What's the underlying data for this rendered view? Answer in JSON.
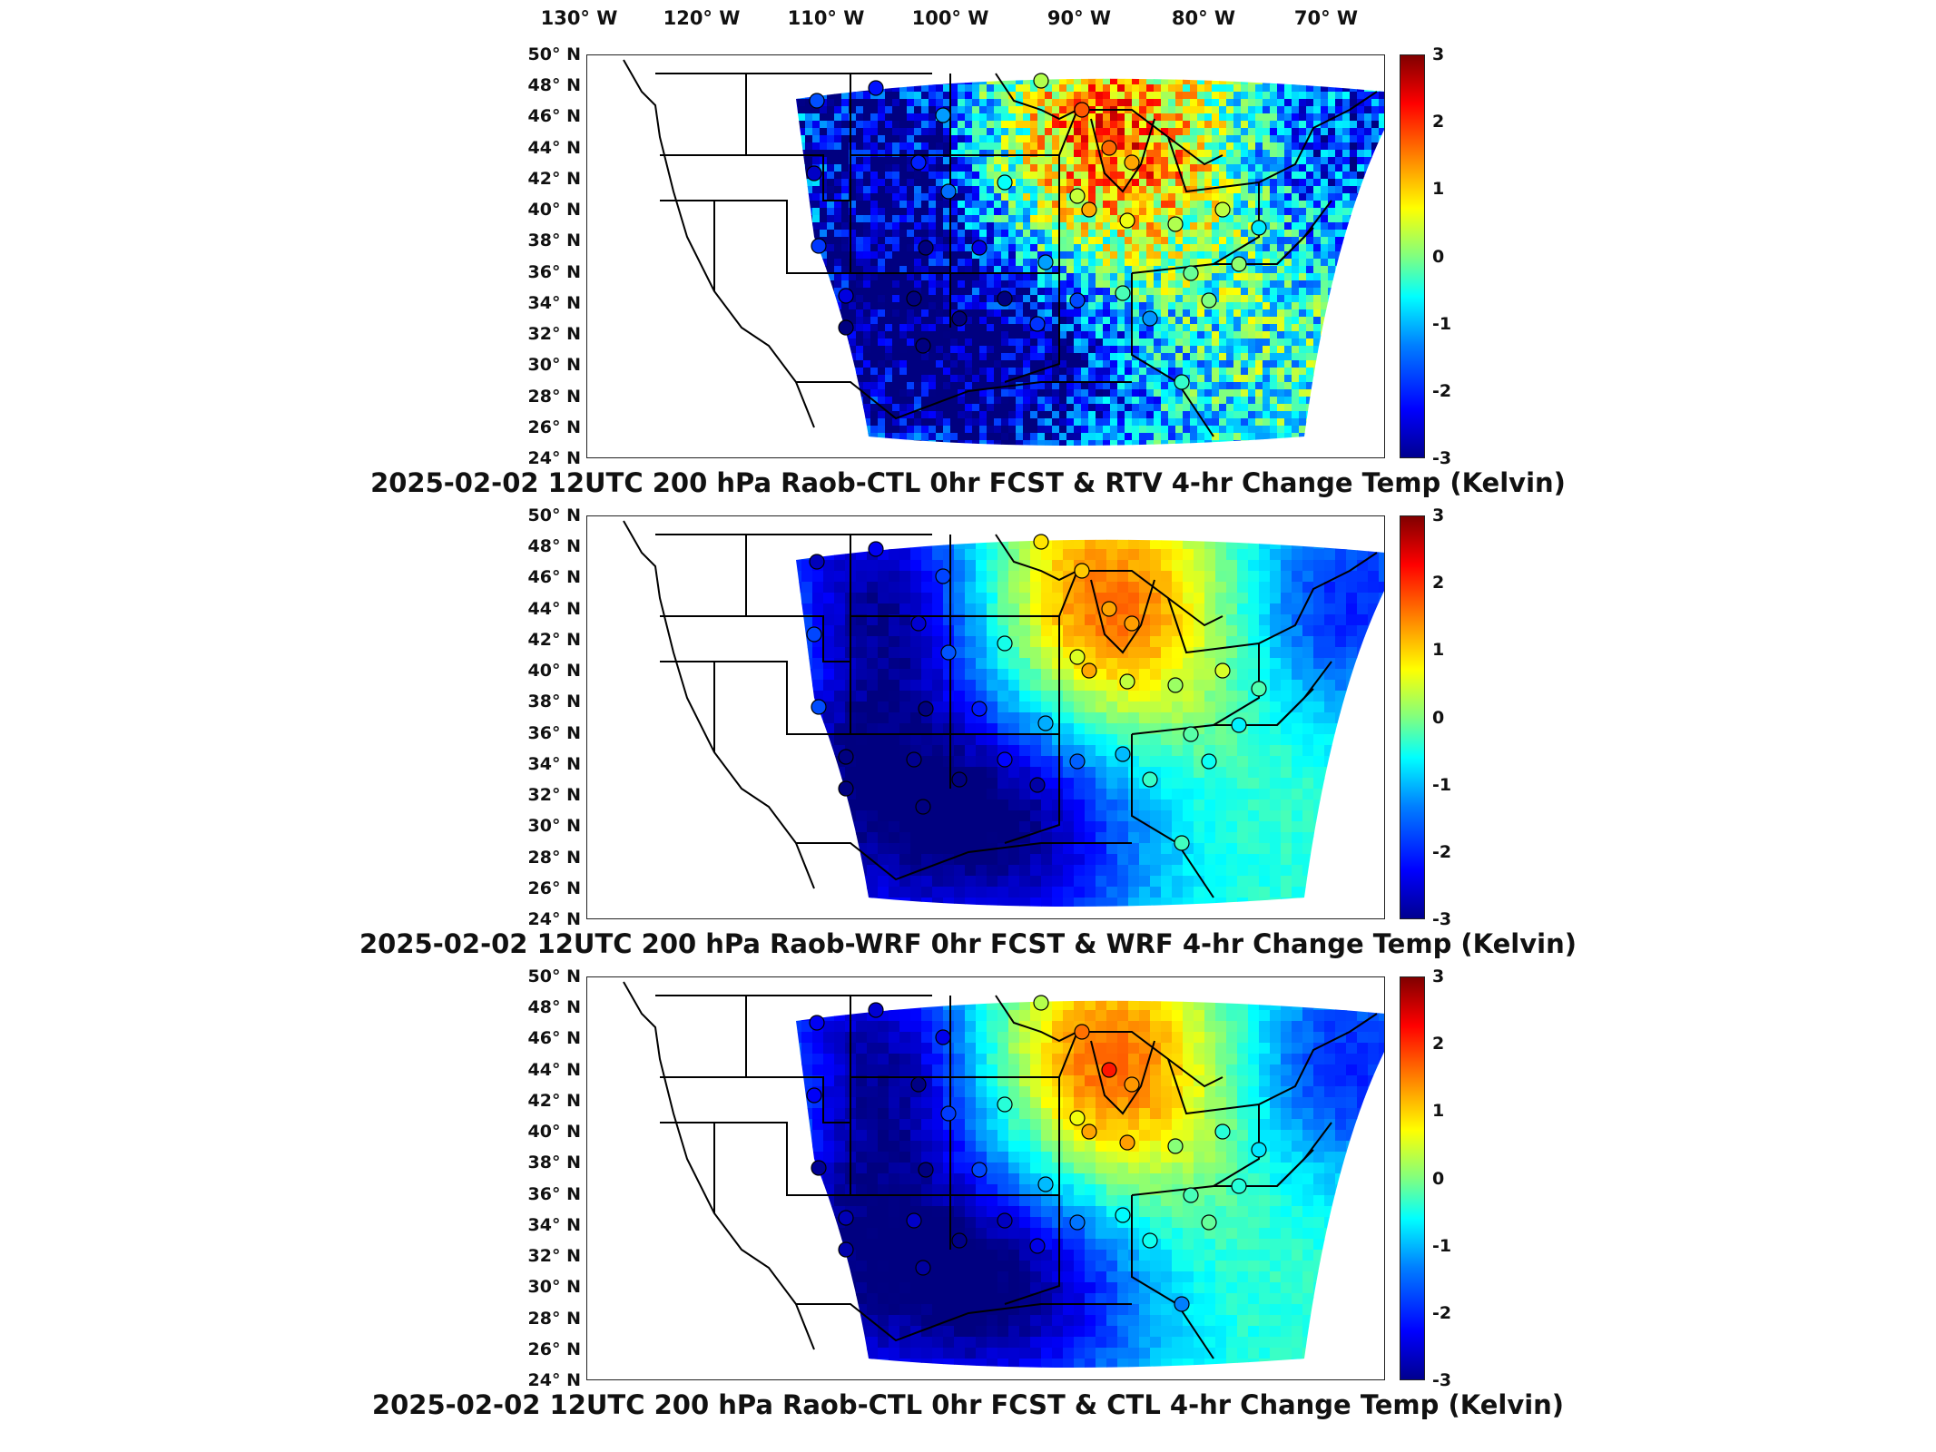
{
  "lon_ticks": [
    "130° W",
    "120° W",
    "110° W",
    "100° W",
    "90° W",
    "80° W",
    "70° W"
  ],
  "lat_ticks": [
    "50° N",
    "48° N",
    "46° N",
    "44° N",
    "42° N",
    "40° N",
    "38° N",
    "36° N",
    "34° N",
    "32° N",
    "30° N",
    "28° N",
    "26° N",
    "24° N"
  ],
  "colorbar": {
    "ticks": [
      "3",
      "2",
      "1",
      "0",
      "-1",
      "-2",
      "-3"
    ],
    "range": [
      -3,
      3
    ],
    "colormap": "jet"
  },
  "panels": [
    {
      "title": "2025-02-02 12UTC 200 hPa Raob-CTL 0hr FCST & RTV 4-hr Change Temp (Kelvin)",
      "style": "noisy"
    },
    {
      "title": "2025-02-02 12UTC 200 hPa Raob-WRF 0hr FCST & WRF 4-hr Change Temp (Kelvin)",
      "style": "smooth"
    },
    {
      "title": "2025-02-02 12UTC 200 hPa Raob-CTL 0hr FCST & CTL 4-hr Change Temp (Kelvin)",
      "style": "smooth"
    }
  ],
  "colors": {
    "warm": "#ff2a00",
    "cool": "#1030ff",
    "neutral": "#7fffa0",
    "border": "#000000"
  }
}
